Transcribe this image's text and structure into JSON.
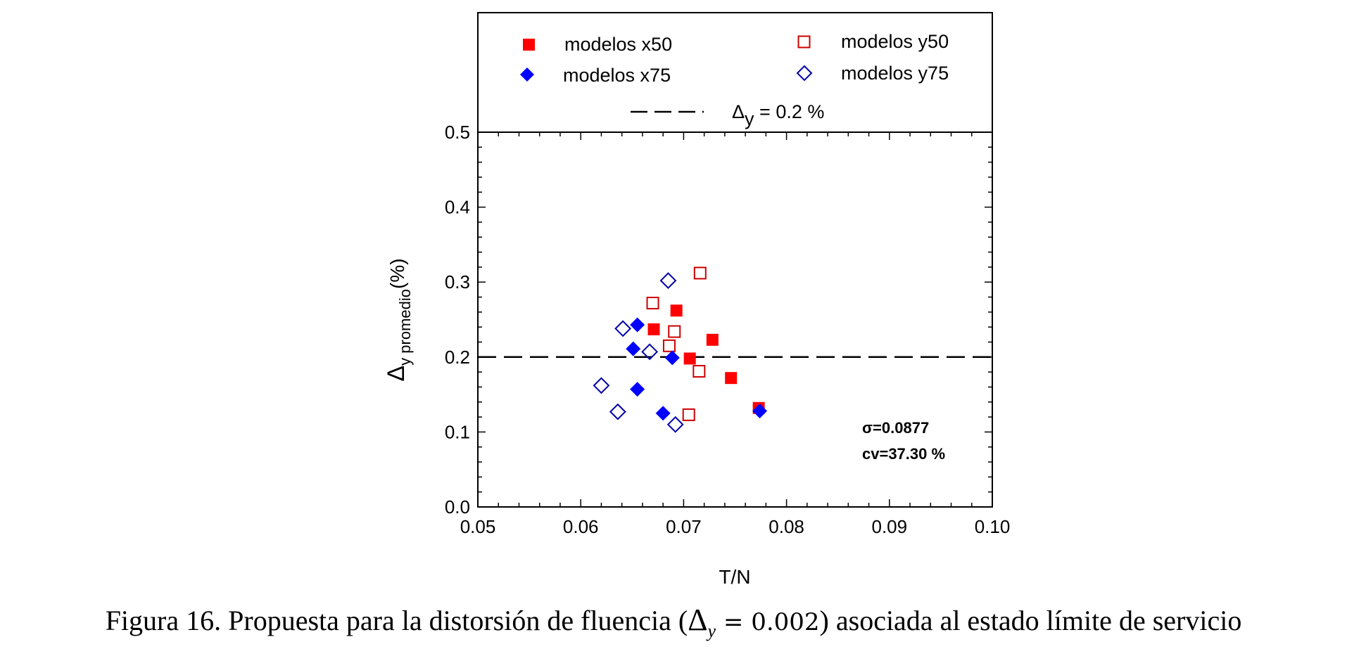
{
  "chart_data": {
    "type": "scatter",
    "title": "",
    "xlabel": "T/N",
    "ylabel_main": "Δ",
    "ylabel_sub": "y promedio",
    "ylabel_suffix": "(%)",
    "xlim": [
      0.05,
      0.1
    ],
    "ylim": [
      0.0,
      0.5
    ],
    "xticks": [
      0.05,
      0.06,
      0.07,
      0.08,
      0.09,
      0.1
    ],
    "xtick_labels": [
      "0.05",
      "0.06",
      "0.07",
      "0.08",
      "0.09",
      "0.10"
    ],
    "yticks": [
      0.0,
      0.1,
      0.2,
      0.3,
      0.4,
      0.5
    ],
    "ytick_labels": [
      "0.0",
      "0.1",
      "0.2",
      "0.3",
      "0.4",
      "0.5"
    ],
    "grid": false,
    "legend_position": "top",
    "series": [
      {
        "name": "modelos x50",
        "marker": "square",
        "filled": true,
        "color": "#ff0000",
        "points": [
          [
            0.0671,
            0.237
          ],
          [
            0.0693,
            0.262
          ],
          [
            0.0706,
            0.198
          ],
          [
            0.0728,
            0.223
          ],
          [
            0.0746,
            0.172
          ],
          [
            0.0773,
            0.132
          ]
        ]
      },
      {
        "name": "modelos y50",
        "marker": "square",
        "filled": false,
        "color": "#cc0000",
        "points": [
          [
            0.0716,
            0.312
          ],
          [
            0.067,
            0.272
          ],
          [
            0.0691,
            0.234
          ],
          [
            0.0686,
            0.215
          ],
          [
            0.0715,
            0.181
          ],
          [
            0.0705,
            0.123
          ]
        ]
      },
      {
        "name": "modelos x75",
        "marker": "diamond",
        "filled": true,
        "color": "#0000ff",
        "points": [
          [
            0.0655,
            0.243
          ],
          [
            0.0651,
            0.211
          ],
          [
            0.0689,
            0.199
          ],
          [
            0.0655,
            0.157
          ],
          [
            0.068,
            0.125
          ],
          [
            0.0774,
            0.128
          ]
        ]
      },
      {
        "name": "modelos y75",
        "marker": "diamond",
        "filled": false,
        "color": "#0000aa",
        "points": [
          [
            0.0685,
            0.302
          ],
          [
            0.0641,
            0.238
          ],
          [
            0.0667,
            0.207
          ],
          [
            0.062,
            0.162
          ],
          [
            0.0636,
            0.127
          ],
          [
            0.0692,
            0.11
          ]
        ]
      }
    ],
    "reference_line": {
      "y": 0.2,
      "style": "dashed",
      "label_main": "Δ",
      "label_sub": "y",
      "label_suffix": " = 0.2 %"
    },
    "annotations": [
      "σ=0.0877",
      "cv=37.30 %"
    ]
  },
  "caption": {
    "prefix": "Figura 16. Propuesta para la distorsión de fluencia (",
    "delta": "Δ",
    "sub": "y",
    "equation": " = 0.002",
    "suffix": ") asociada al estado límite de servicio"
  }
}
